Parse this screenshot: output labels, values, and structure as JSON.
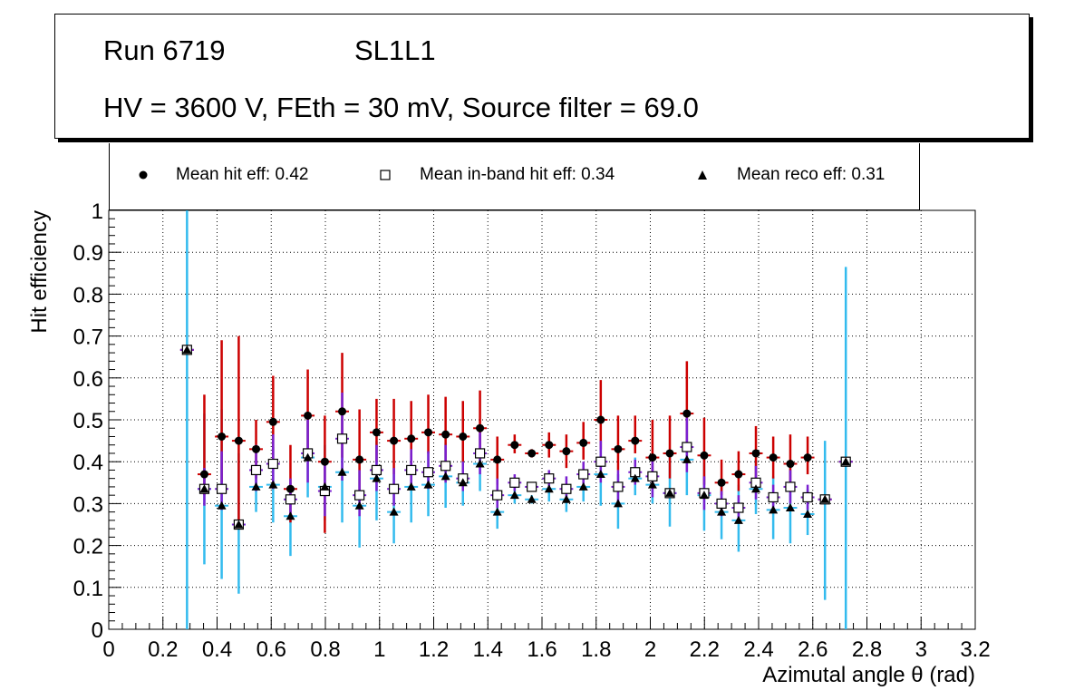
{
  "title": {
    "run": "Run 6719",
    "layer": "SL1L1",
    "conditions": "HV = 3600 V, FEth = 30 mV, Source filter = 69.0"
  },
  "legend": {
    "hit": "Mean hit  eff: 0.42",
    "inband": "Mean in-band hit eff: 0.34",
    "reco": "Mean reco eff: 0.31"
  },
  "colors": {
    "hit_err": "#cc0000",
    "inband_err": "#7a1fd0",
    "reco_err": "#33bbee",
    "grid": "#000000"
  },
  "chart_data": {
    "type": "scatter",
    "xlabel": "Azimutal angle θ (rad)",
    "ylabel": "Hit efficiency",
    "xlim": [
      0,
      3.2
    ],
    "ylim": [
      0,
      1
    ],
    "xticks": [
      "0",
      "0.2",
      "0.4",
      "0.6",
      "0.8",
      "1",
      "1.2",
      "1.4",
      "1.6",
      "1.8",
      "2",
      "2.2",
      "2.4",
      "2.6",
      "2.8",
      "3",
      "3.2"
    ],
    "yticks": [
      "0",
      "0.1",
      "0.2",
      "0.3",
      "0.4",
      "0.5",
      "0.6",
      "0.7",
      "0.8",
      "0.9",
      "1"
    ],
    "grid": true,
    "x_bin_halfwidth": 0.025,
    "x": [
      0.289,
      0.353,
      0.417,
      0.48,
      0.544,
      0.607,
      0.671,
      0.735,
      0.798,
      0.862,
      0.926,
      0.989,
      1.053,
      1.117,
      1.18,
      1.244,
      1.308,
      1.371,
      1.435,
      1.499,
      1.562,
      1.626,
      1.69,
      1.753,
      1.817,
      1.881,
      1.944,
      2.008,
      2.072,
      2.135,
      2.199,
      2.263,
      2.326,
      2.39,
      2.454,
      2.517,
      2.581,
      2.645,
      2.722
    ],
    "series": [
      {
        "name": "Mean hit eff",
        "marker": "filled-circle",
        "values": [
          0.667,
          0.37,
          0.46,
          0.45,
          0.43,
          0.495,
          0.335,
          0.51,
          0.4,
          0.52,
          0.405,
          0.47,
          0.45,
          0.455,
          0.47,
          0.465,
          0.46,
          0.48,
          0.405,
          0.44,
          0.42,
          0.44,
          0.425,
          0.445,
          0.5,
          0.43,
          0.45,
          0.41,
          0.42,
          0.515,
          0.415,
          0.35,
          0.37,
          0.42,
          0.41,
          0.395,
          0.41,
          0.31,
          0.4
        ],
        "err_low": [
          0,
          0.05,
          0.11,
          0.2,
          0.07,
          0.11,
          0.08,
          0.1,
          0.17,
          0.11,
          0.1,
          0.07,
          0.08,
          0.07,
          0.05,
          0.07,
          0.06,
          0.05,
          0.06,
          0.02,
          0.01,
          0.03,
          0.04,
          0.04,
          0.07,
          0.05,
          0.03,
          0.07,
          0.06,
          0.09,
          0.07,
          0.03,
          0.04,
          0.06,
          0.05,
          0.05,
          0.04,
          0,
          0
        ],
        "err_high": [
          0,
          0.19,
          0.23,
          0.25,
          0.07,
          0.11,
          0.105,
          0.11,
          0.11,
          0.14,
          0.12,
          0.08,
          0.1,
          0.09,
          0.09,
          0.09,
          0.085,
          0.09,
          0.055,
          0.025,
          0.01,
          0.03,
          0.04,
          0.05,
          0.095,
          0.08,
          0.06,
          0.09,
          0.09,
          0.125,
          0.09,
          0.055,
          0.055,
          0.065,
          0.05,
          0.07,
          0.05,
          0,
          0
        ]
      },
      {
        "name": "Mean in-band hit eff",
        "marker": "open-square",
        "values": [
          0.667,
          0.335,
          0.335,
          0.25,
          0.38,
          0.395,
          0.31,
          0.42,
          0.33,
          0.455,
          0.32,
          0.38,
          0.335,
          0.38,
          0.375,
          0.39,
          0.36,
          0.42,
          0.32,
          0.35,
          0.34,
          0.36,
          0.335,
          0.37,
          0.4,
          0.34,
          0.375,
          0.365,
          0.325,
          0.435,
          0.325,
          0.3,
          0.29,
          0.35,
          0.315,
          0.34,
          0.315,
          0.31,
          0.4
        ],
        "err_low": [
          0,
          0.04,
          0.05,
          0.01,
          0.05,
          0.06,
          0.04,
          0.07,
          0.06,
          0.1,
          0.05,
          0.05,
          0.04,
          0.04,
          0.04,
          0.04,
          0.03,
          0.05,
          0.03,
          0.02,
          0.01,
          0.02,
          0.03,
          0.03,
          0.05,
          0.04,
          0.03,
          0.05,
          0.01,
          0.06,
          0.04,
          0.03,
          0.03,
          0.04,
          0.03,
          0.04,
          0.03,
          0,
          0
        ],
        "err_high": [
          0,
          0.05,
          0.09,
          0.01,
          0.06,
          0.07,
          0.05,
          0.08,
          0.07,
          0.11,
          0.06,
          0.06,
          0.05,
          0.05,
          0.05,
          0.05,
          0.04,
          0.05,
          0.04,
          0.02,
          0.01,
          0.02,
          0.03,
          0.03,
          0.05,
          0.04,
          0.03,
          0.05,
          0.01,
          0.07,
          0.04,
          0.03,
          0.03,
          0.04,
          0.03,
          0.04,
          0.03,
          0,
          0
        ]
      },
      {
        "name": "Mean reco eff",
        "marker": "filled-triangle",
        "values": [
          0.667,
          0.335,
          0.295,
          0.25,
          0.34,
          0.345,
          0.27,
          0.41,
          0.34,
          0.375,
          0.295,
          0.36,
          0.28,
          0.34,
          0.345,
          0.365,
          0.35,
          0.395,
          0.28,
          0.32,
          0.31,
          0.335,
          0.31,
          0.34,
          0.37,
          0.3,
          0.36,
          0.345,
          0.325,
          0.405,
          0.32,
          0.28,
          0.26,
          0.335,
          0.285,
          0.29,
          0.275,
          0.31,
          0.4
        ],
        "err_low": [
          0.667,
          0.18,
          0.175,
          0.165,
          0.06,
          0.09,
          0.095,
          0.095,
          0.08,
          0.12,
          0.1,
          0.1,
          0.075,
          0.085,
          0.075,
          0.075,
          0.055,
          0.065,
          0.04,
          0.02,
          0.01,
          0.03,
          0.03,
          0.035,
          0.075,
          0.06,
          0.04,
          0.045,
          0.08,
          0.085,
          0.085,
          0.065,
          0.075,
          0.06,
          0.07,
          0.085,
          0.05,
          0.24,
          0.4
        ],
        "err_high": [
          0.333,
          0.18,
          0.23,
          0.17,
          0.05,
          0.09,
          0.08,
          0.1,
          0.1,
          0.15,
          0.12,
          0.09,
          0.09,
          0.08,
          0.08,
          0.08,
          0.06,
          0.07,
          0.045,
          0.025,
          0.01,
          0.03,
          0.035,
          0.035,
          0.08,
          0.07,
          0.05,
          0.055,
          0.09,
          0.1,
          0.09,
          0.065,
          0.085,
          0.07,
          0.08,
          0.095,
          0.06,
          0.14,
          0.465
        ]
      }
    ]
  }
}
